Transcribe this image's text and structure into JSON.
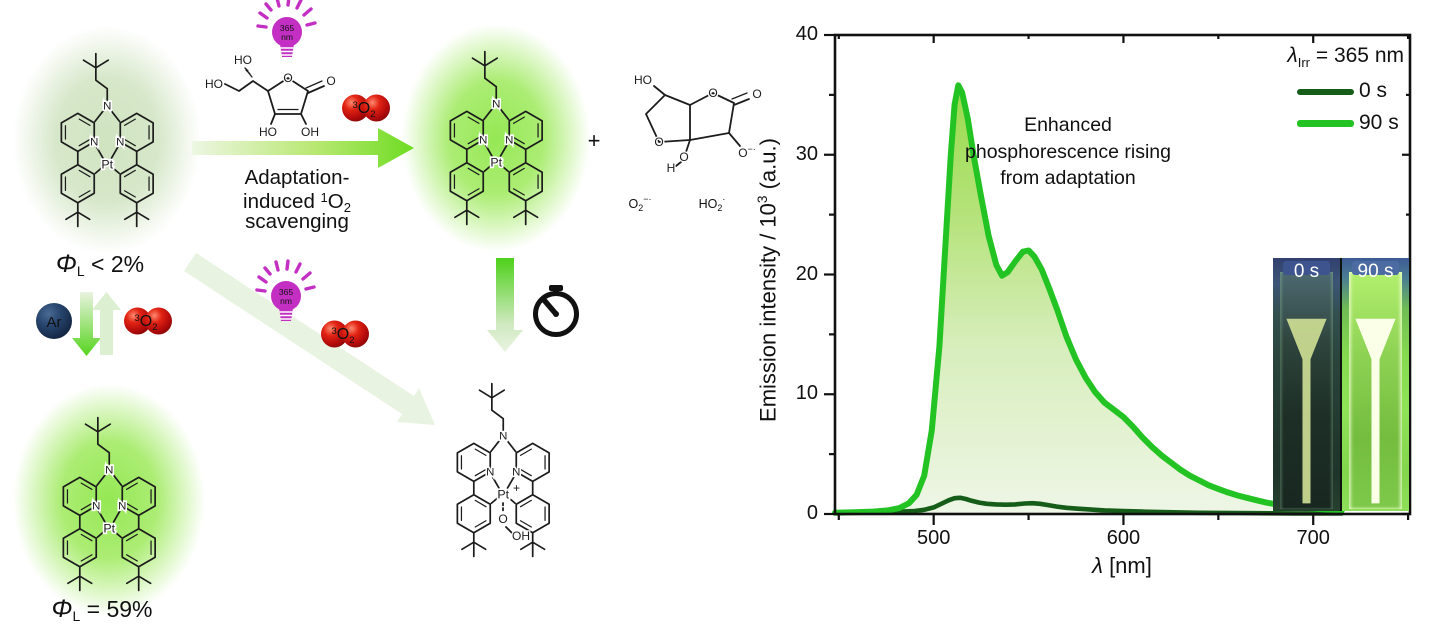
{
  "scheme": {
    "complex": {
      "pt": "Pt",
      "n": "N",
      "plus": "+"
    },
    "phi_reactant": {
      "phi": "Φ",
      "sub": "L",
      "rest": " < 2%"
    },
    "phi_product": {
      "phi": "Φ",
      "sub": "L",
      "rest": " = 59%"
    },
    "reaction_text": {
      "line1": "Adaptation-",
      "line2_pre": "induced ",
      "line2_sup": "1",
      "line2_mid": "O",
      "line2_sub": "2",
      "line3": "scavenging"
    },
    "bulb": {
      "line1": "365",
      "line2": "nm"
    },
    "ar_label": "Ar",
    "o2_label": {
      "sup": "3",
      "mid": "O",
      "sub": "2"
    },
    "plus_sign": "+",
    "peroxo": {
      "o": "O",
      "oh": "OH"
    },
    "ascorbic": {
      "ho_top": "HO",
      "ho_left": "HO",
      "ring_o": "O",
      "carbonyl_o": "O",
      "ho_bottom": "HO",
      "oh_bottom": "OH"
    },
    "oxidized": {
      "ho": "HO",
      "ring_o": "O",
      "carbonyl_o": "O",
      "o_rad": "O",
      "o_rad_sup": "−·",
      "o_bridge": "O",
      "h": "H"
    },
    "radical1": {
      "pre": "O",
      "sub": "2",
      "sup": "−·"
    },
    "radical2": {
      "pre": "HO",
      "sub": "2",
      "sup": "·"
    },
    "colors": {
      "bulb_magenta": "#c32fc3",
      "o2_red": "#cc1010",
      "ar_navy": "#1c3a60",
      "glow_vivid": "#8fe74b",
      "glow_pale": "#cde2bd",
      "arrow_green": "#6edc22"
    }
  },
  "chart_data": {
    "type": "area",
    "title": "",
    "xlabel_italic": "λ",
    "xlabel_rest": " [nm]",
    "ylabel_pre": "Emission intensity / 10",
    "ylabel_sup": "3",
    "ylabel_post": " (a.u.)",
    "xlim": [
      448,
      751
    ],
    "ylim": [
      0,
      40
    ],
    "x_ticks_major": [
      500,
      600,
      700
    ],
    "x_ticks_minor": [
      450,
      550,
      650,
      750
    ],
    "y_ticks_major": [
      0,
      10,
      20,
      30,
      40
    ],
    "y_ticks_minor": [
      5,
      15,
      25,
      35
    ],
    "grid": false,
    "legend_position": "top-right",
    "legend": {
      "lambda": "λ",
      "sub": "Irr",
      "rest": " = 365 nm"
    },
    "annotation": "Enhanced phosphorescence rising from adaptation",
    "series": [
      {
        "name": "0 s",
        "color": "#155d18",
        "area": false,
        "x": [
          448,
          460,
          470,
          480,
          490,
          495,
          500,
          504,
          508,
          511,
          514,
          517,
          520,
          524,
          528,
          533,
          538,
          543,
          548,
          552,
          556,
          560,
          565,
          570,
          575,
          580,
          585,
          590,
          600,
          610,
          620,
          630,
          640,
          650,
          660,
          670,
          680,
          690,
          700,
          710,
          715
        ],
        "y": [
          0.12,
          0.13,
          0.15,
          0.18,
          0.25,
          0.35,
          0.55,
          0.85,
          1.15,
          1.32,
          1.35,
          1.25,
          1.1,
          0.95,
          0.85,
          0.8,
          0.78,
          0.8,
          0.88,
          0.9,
          0.85,
          0.75,
          0.62,
          0.52,
          0.45,
          0.4,
          0.35,
          0.3,
          0.25,
          0.2,
          0.16,
          0.13,
          0.1,
          0.09,
          0.08,
          0.07,
          0.06,
          0.05,
          0.05,
          0.04,
          0.04
        ]
      },
      {
        "name": "90 s",
        "color": "#24c324",
        "area": true,
        "fill_gradient": [
          "#98da4a",
          "#b6e37c",
          "#d8eebd",
          "#eef6e6"
        ],
        "x": [
          448,
          458,
          468,
          476,
          482,
          487,
          491,
          495,
          499,
          503,
          506,
          509,
          511,
          513,
          515,
          518,
          521,
          525,
          529,
          533,
          536,
          539,
          543,
          547,
          550,
          553,
          557,
          561,
          565,
          570,
          575,
          580,
          585,
          590,
          595,
          600,
          605,
          610,
          615,
          620,
          625,
          630,
          635,
          640,
          645,
          650,
          655,
          660,
          665,
          670,
          675,
          680,
          685,
          690,
          695,
          700,
          705,
          710,
          715
        ],
        "y": [
          0.1,
          0.15,
          0.2,
          0.3,
          0.5,
          0.9,
          1.6,
          3.2,
          7,
          14,
          22,
          30,
          34.2,
          35.8,
          35.2,
          33,
          30,
          26.5,
          23.2,
          20.8,
          19.9,
          20.2,
          21.1,
          21.9,
          22,
          21.5,
          20.4,
          18.8,
          17.1,
          14.8,
          12.9,
          11.4,
          10.2,
          9.3,
          8.7,
          8.1,
          7.3,
          6.4,
          5.6,
          4.9,
          4.3,
          3.7,
          3.2,
          2.8,
          2.4,
          2.1,
          1.8,
          1.55,
          1.35,
          1.15,
          0.97,
          0.82,
          0.7,
          0.62,
          0.53,
          0.46,
          0.4,
          0.35,
          0.3
        ]
      }
    ],
    "inset": {
      "left_label": "0 s",
      "right_label": "90 s"
    }
  }
}
